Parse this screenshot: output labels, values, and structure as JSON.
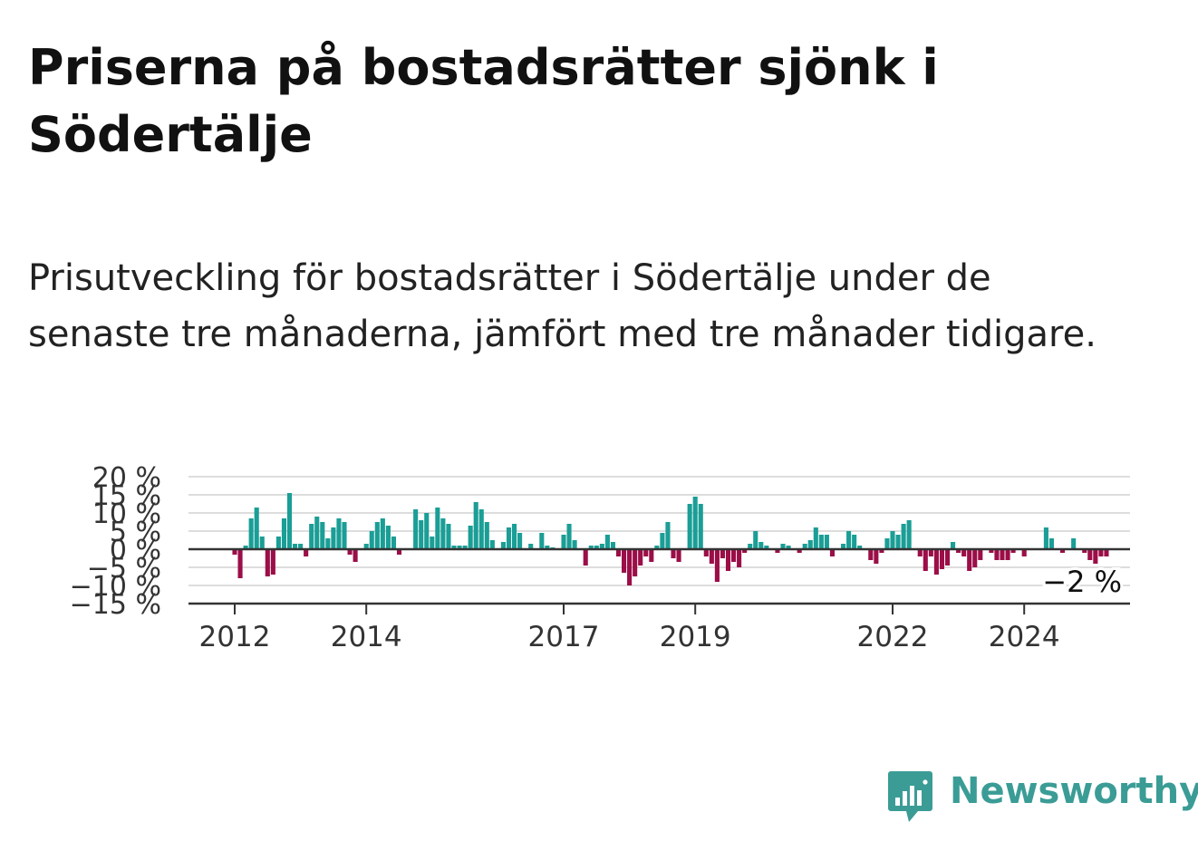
{
  "header": {
    "title": "Priserna på bostadsrätter sjönk i Södertälje",
    "subtitle": "Prisutveckling för bostadsrätter i Södertälje under de senaste tre månaderna, jämfört med tre månader tidigare."
  },
  "brand": {
    "name": "Newsworthy",
    "logo_icon": "bar-chart-speech-bubble-icon",
    "color": "#3b9c96"
  },
  "chart_data": {
    "type": "bar",
    "x_start": "2012-01",
    "frequency": "monthly",
    "ylim": [
      -15,
      20
    ],
    "y_ticks": [
      20,
      15,
      10,
      5,
      0,
      -5,
      -10,
      -15
    ],
    "y_tick_labels": [
      "20 %",
      "15 %",
      "10 %",
      "5 %",
      "0 %",
      "−5 %",
      "−10 %",
      "−15 %"
    ],
    "x_tick_labels": [
      "2012",
      "2014",
      "2017",
      "2019",
      "2022",
      "2024"
    ],
    "x_tick_dates": [
      "2012-01",
      "2014-01",
      "2017-01",
      "2019-01",
      "2022-01",
      "2024-01"
    ],
    "last_value_label": "−2 %",
    "positive_color": "#1a9e96",
    "negative_color": "#9b0e48",
    "grid": true,
    "values": [
      -1.5,
      -8,
      1,
      8.5,
      11.5,
      3.5,
      -7.5,
      -7,
      3.5,
      8.5,
      15.5,
      1.5,
      1.5,
      -2,
      7,
      9,
      7.5,
      3,
      6,
      8.5,
      7.5,
      -1.5,
      -3.5,
      0,
      1.5,
      5,
      7.5,
      8.5,
      6.5,
      3.5,
      -1.5,
      0,
      0,
      11,
      8,
      10,
      3.5,
      11.5,
      8.5,
      7,
      1,
      1,
      1,
      6.5,
      13,
      11,
      7.5,
      2.5,
      0,
      2,
      6,
      7,
      4.5,
      0,
      1.5,
      0,
      4.5,
      1,
      0.5,
      0,
      4,
      7,
      2.5,
      0,
      -4.5,
      1,
      1,
      1.5,
      4,
      2,
      -2,
      -6.5,
      -10,
      -7.5,
      -4.5,
      -2,
      -3.5,
      1,
      4.5,
      7.5,
      -2.5,
      -3.5,
      0,
      12.5,
      14.5,
      12.5,
      -2,
      -4,
      -9,
      -2.5,
      -6,
      -3.5,
      -5,
      -1,
      1.5,
      5,
      2,
      1,
      0,
      -1,
      1.5,
      1,
      0,
      -1,
      1.5,
      2.5,
      6,
      4,
      4,
      -2,
      0,
      1.5,
      5,
      4,
      1,
      0,
      -3,
      -4,
      -1,
      3,
      5,
      4,
      7,
      8,
      0,
      -2,
      -6,
      -2,
      -7,
      -5.5,
      -4.5,
      2,
      -1,
      -2,
      -6,
      -5,
      -3,
      0,
      -1,
      -3,
      -3,
      -3,
      -1,
      0,
      -2,
      0,
      0,
      0,
      6,
      3,
      0,
      -1,
      0,
      3,
      0,
      -1,
      -3,
      -4,
      -2,
      -2
    ]
  }
}
